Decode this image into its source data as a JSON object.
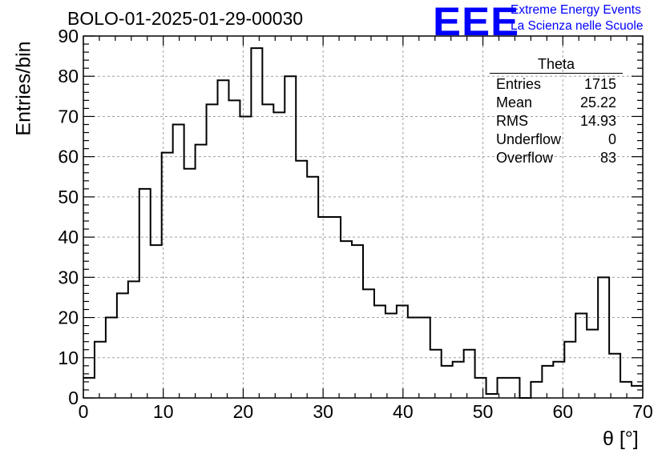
{
  "header": {
    "title": "BOLO-01-2025-01-29-00030",
    "logo_text": "EEE",
    "logo_line1": "Extreme Energy Events",
    "logo_line2": "La Scienza nelle Scuole"
  },
  "stats_box": {
    "title": "Theta",
    "rows": [
      {
        "label": "Entries",
        "value": "1715"
      },
      {
        "label": "Mean",
        "value": "25.22"
      },
      {
        "label": "RMS",
        "value": "14.93"
      },
      {
        "label": "Underflow",
        "value": "0"
      },
      {
        "label": "Overflow",
        "value": "83"
      }
    ]
  },
  "chart_data": {
    "type": "bar",
    "title": "BOLO-01-2025-01-29-00030",
    "xlabel": "θ [°]",
    "ylabel": "Entries/bin",
    "xlim": [
      0,
      70
    ],
    "ylim": [
      0,
      90
    ],
    "bin_width": 1.4,
    "x_ticks": [
      0,
      10,
      20,
      30,
      40,
      50,
      60,
      70
    ],
    "y_ticks": [
      0,
      10,
      20,
      30,
      40,
      50,
      60,
      70,
      80,
      90
    ],
    "grid": true,
    "values": [
      5,
      14,
      20,
      26,
      29,
      52,
      38,
      61,
      68,
      57,
      63,
      73,
      79,
      74,
      70,
      87,
      73,
      71,
      80,
      59,
      55,
      45,
      45,
      39,
      38,
      27,
      23,
      21,
      23,
      20,
      20,
      12,
      8,
      9,
      12,
      5,
      1,
      5,
      5,
      0,
      4,
      8,
      9,
      14,
      21,
      17,
      30,
      11,
      4,
      3
    ]
  },
  "colors": {
    "histogram_line": "#000000",
    "grid": "#a0a0a0",
    "logo": "#0000ff"
  }
}
